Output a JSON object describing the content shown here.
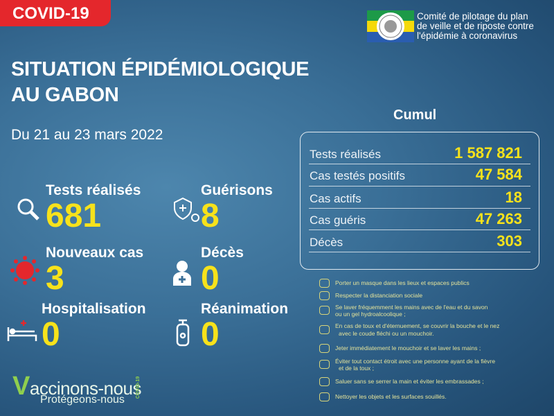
{
  "banner": "COVID-19",
  "logo": {
    "lines": [
      "Comité de pilotage du plan",
      "de veille et de riposte contre",
      "l'épidémie à coronavirus"
    ]
  },
  "title": {
    "lines": [
      "SITUATION ÉPIDÉMIOLOGIQUE",
      "AU GABON"
    ]
  },
  "period": "Du 21 au 23 mars 2022",
  "stats": [
    {
      "label": "Tests réalisés",
      "value": "681"
    },
    {
      "label": "Guérisons",
      "value": "8"
    },
    {
      "label": "Nouveaux cas",
      "value": "3"
    },
    {
      "label": "Décès",
      "value": "0"
    },
    {
      "label": "Hospitalisation",
      "value": "0"
    },
    {
      "label": "Réanimation",
      "value": "0"
    }
  ],
  "cumul": {
    "title": "Cumul",
    "rows": [
      {
        "label": "Tests réalisés",
        "value": "1 587 821"
      },
      {
        "label": "Cas testés positifs",
        "value": "47 584"
      },
      {
        "label": "Cas actifs",
        "value": "18"
      },
      {
        "label": "Cas guéris",
        "value": "47 263"
      },
      {
        "label": "Décès",
        "value": "303"
      }
    ]
  },
  "measures": [
    {
      "lines": [
        "Porter un masque dans les lieux et espaces publics"
      ]
    },
    {
      "lines": [
        "Respecter la distanciation sociale"
      ]
    },
    {
      "lines": [
        "Se laver fréquemment les mains avec de l'eau et du savon",
        "ou un gel hydroalcoolique ;"
      ]
    },
    {
      "lines": [
        "En cas de toux et d'éternuement, se couvrir la bouche et le nez",
        "avec le coude fléchi ou un mouchoir."
      ]
    },
    {
      "lines": [
        "Jeter immédiatement le mouchoir et se laver les mains ;"
      ]
    },
    {
      "lines": [
        "Éviter tout contact étroit avec une personne ayant de la fièvre",
        "et de la toux ;"
      ]
    },
    {
      "lines": [
        "Saluer sans se serrer la main et éviter les embrassades ;"
      ]
    },
    {
      "lines": [
        "Nettoyer les objets et les surfaces souillés."
      ]
    }
  ],
  "vaccination": {
    "slogan": "Vaccinons-nous",
    "subline": "Protégeons-nous",
    "tag": "COVID-19"
  }
}
